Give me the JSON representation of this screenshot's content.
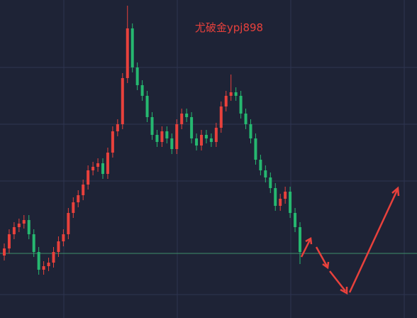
{
  "chart_data": {
    "type": "candlestick",
    "title": "尤破金ypj898",
    "up_color": "#e8413c",
    "down_color": "#26b870",
    "ylim": [
      0,
      448
    ],
    "price_line": 91,
    "open": [
      88,
      98,
      118,
      128,
      133,
      138,
      118,
      93,
      68,
      73,
      78,
      93,
      108,
      118,
      148,
      163,
      173,
      188,
      208,
      213,
      218,
      203,
      233,
      263,
      273,
      338,
      408,
      353,
      328,
      313,
      283,
      258,
      248,
      263,
      253,
      238,
      273,
      288,
      283,
      253,
      243,
      258,
      253,
      248,
      268,
      298,
      313,
      318,
      313,
      288,
      273,
      253,
      223,
      208,
      198,
      183,
      158,
      168,
      178,
      148,
      128
    ],
    "high": [
      105,
      125,
      135,
      140,
      145,
      145,
      125,
      100,
      80,
      85,
      100,
      115,
      125,
      155,
      170,
      180,
      195,
      215,
      220,
      225,
      225,
      240,
      270,
      280,
      345,
      440,
      415,
      360,
      335,
      320,
      290,
      265,
      270,
      270,
      260,
      280,
      295,
      295,
      290,
      260,
      265,
      265,
      260,
      275,
      305,
      320,
      343,
      325,
      320,
      295,
      280,
      260,
      230,
      215,
      205,
      190,
      175,
      185,
      185,
      155,
      135
    ],
    "low": [
      81,
      91,
      111,
      121,
      126,
      111,
      86,
      61,
      61,
      66,
      71,
      86,
      101,
      111,
      141,
      156,
      166,
      181,
      201,
      206,
      196,
      196,
      226,
      256,
      266,
      331,
      346,
      321,
      306,
      276,
      251,
      241,
      241,
      246,
      231,
      231,
      266,
      276,
      246,
      236,
      236,
      246,
      241,
      241,
      261,
      291,
      306,
      306,
      281,
      266,
      246,
      216,
      201,
      191,
      176,
      151,
      151,
      161,
      141,
      121,
      76
    ],
    "close": [
      98,
      118,
      128,
      133,
      138,
      118,
      93,
      68,
      73,
      78,
      93,
      108,
      118,
      148,
      163,
      173,
      188,
      208,
      213,
      218,
      203,
      233,
      263,
      273,
      338,
      408,
      353,
      328,
      313,
      283,
      258,
      248,
      263,
      253,
      238,
      273,
      288,
      283,
      253,
      243,
      258,
      253,
      248,
      268,
      298,
      313,
      318,
      313,
      288,
      273,
      253,
      223,
      208,
      198,
      183,
      158,
      168,
      178,
      148,
      128,
      93
    ]
  }
}
